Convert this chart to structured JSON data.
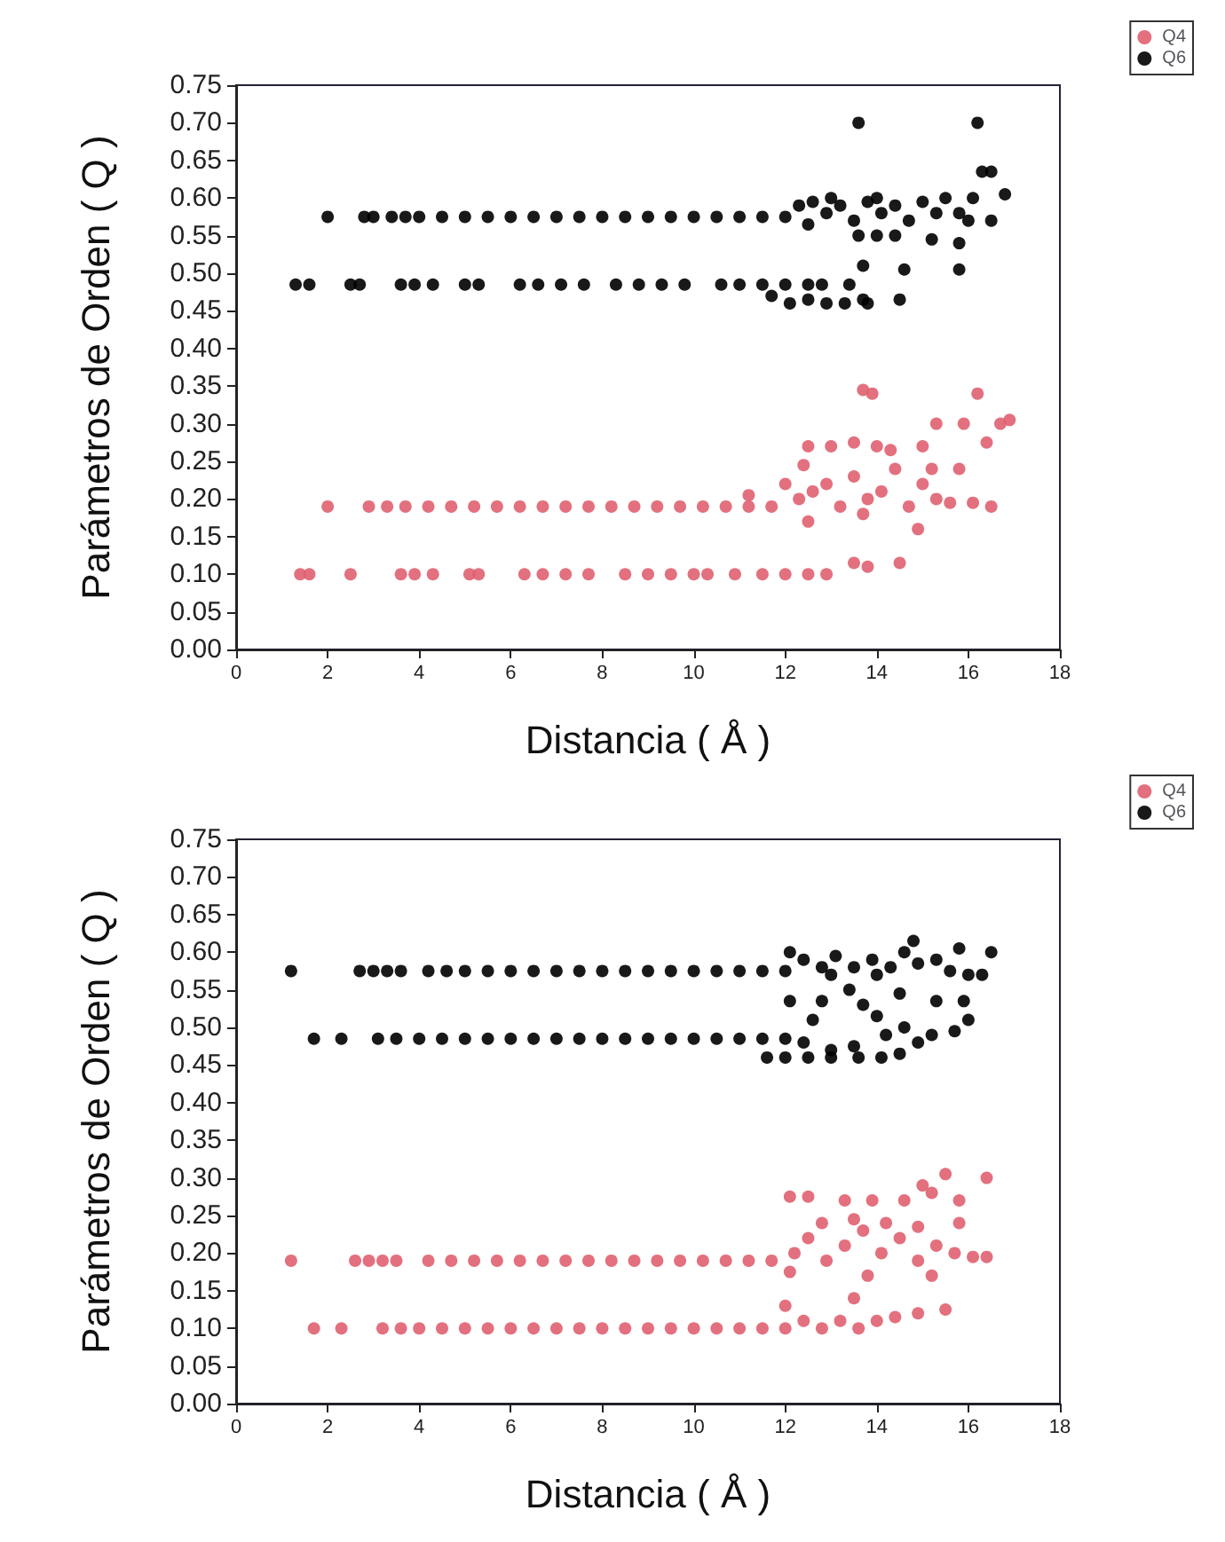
{
  "chart_data": [
    {
      "type": "scatter",
      "xlabel": "Distancia ( Å )",
      "ylabel": "Parámetros de Orden ( Q )",
      "xlim": [
        0,
        18
      ],
      "xticks": [
        0,
        2,
        4,
        6,
        8,
        10,
        12,
        14,
        16,
        18
      ],
      "ylim": [
        0,
        0.75
      ],
      "yticks": [
        {
          "value": 0,
          "label": "0.00"
        },
        {
          "value": 0.05,
          "label": "0.05"
        },
        {
          "value": 0.1,
          "label": "0.10"
        },
        {
          "value": 0.15,
          "label": "0.15"
        },
        {
          "value": 0.2,
          "label": "0.20"
        },
        {
          "value": 0.25,
          "label": "0.25"
        },
        {
          "value": 0.3,
          "label": "0.30"
        },
        {
          "value": 0.35,
          "label": "0.35"
        },
        {
          "value": 0.4,
          "label": "0.40"
        },
        {
          "value": 0.45,
          "label": "0.45"
        },
        {
          "value": 0.5,
          "label": "0.50"
        },
        {
          "value": 0.55,
          "label": "0.55"
        },
        {
          "value": 0.6,
          "label": "0.60"
        },
        {
          "value": 0.65,
          "label": "0.65"
        },
        {
          "value": 0.7,
          "label": "0.70"
        },
        {
          "value": 0.75,
          "label": "0.75"
        }
      ],
      "grid": false,
      "legend": "top right",
      "marker": "circle",
      "series": [
        {
          "name": "Q4",
          "color": "#e06070",
          "x": [
            2.0,
            2.9,
            3.3,
            3.7,
            4.2,
            4.7,
            5.2,
            5.7,
            6.2,
            6.7,
            7.2,
            7.7,
            8.2,
            8.7,
            9.2,
            9.7,
            10.2,
            10.7,
            11.2,
            11.7,
            1.4,
            1.6,
            2.5,
            3.6,
            3.9,
            4.3,
            5.1,
            5.3,
            6.3,
            6.7,
            7.2,
            7.7,
            8.5,
            9.0,
            9.5,
            10.0,
            10.3,
            10.9,
            11.5,
            12.0,
            12.5,
            12.9,
            12.3,
            12.6,
            12.9,
            13.2,
            13.5,
            13.8,
            14.1,
            14.4,
            14.7,
            15.0,
            15.3,
            15.6,
            16.1,
            16.5,
            12.5,
            13.7,
            14.9,
            12.5,
            13.0,
            13.5,
            14.0,
            14.3,
            15.0,
            15.2,
            15.8,
            12.4,
            13.7,
            13.9,
            16.2,
            15.3,
            15.9,
            16.7,
            16.9,
            16.4,
            11.2,
            12.0,
            13.5,
            14.5,
            13.8
          ],
          "values": [
            0.19,
            0.19,
            0.19,
            0.19,
            0.19,
            0.19,
            0.19,
            0.19,
            0.19,
            0.19,
            0.19,
            0.19,
            0.19,
            0.19,
            0.19,
            0.19,
            0.19,
            0.19,
            0.19,
            0.19,
            0.1,
            0.1,
            0.1,
            0.1,
            0.1,
            0.1,
            0.1,
            0.1,
            0.1,
            0.1,
            0.1,
            0.1,
            0.1,
            0.1,
            0.1,
            0.1,
            0.1,
            0.1,
            0.1,
            0.1,
            0.1,
            0.1,
            0.2,
            0.21,
            0.22,
            0.19,
            0.23,
            0.2,
            0.21,
            0.24,
            0.19,
            0.22,
            0.2,
            0.195,
            0.195,
            0.19,
            0.17,
            0.18,
            0.16,
            0.27,
            0.27,
            0.275,
            0.27,
            0.265,
            0.27,
            0.24,
            0.24,
            0.245,
            0.345,
            0.34,
            0.34,
            0.3,
            0.3,
            0.3,
            0.305,
            0.275,
            0.205,
            0.22,
            0.115,
            0.115,
            0.11
          ]
        },
        {
          "name": "Q6",
          "color": "#000000",
          "x": [
            2.0,
            2.8,
            3.0,
            3.4,
            3.7,
            4.0,
            4.5,
            5,
            5.5,
            6,
            6.5,
            7,
            7.5,
            8,
            8.5,
            9,
            9.5,
            10,
            10.5,
            11,
            11.5,
            12,
            1.3,
            1.6,
            2.5,
            2.7,
            3.6,
            3.9,
            4.3,
            5.0,
            5.3,
            6.2,
            6.6,
            7.1,
            7.6,
            8.3,
            8.8,
            9.3,
            9.8,
            10.6,
            11.0,
            11.5,
            12.0,
            12.5,
            12.3,
            12.6,
            12.9,
            13.2,
            13.5,
            13.8,
            14.1,
            14.4,
            14.7,
            15.0,
            15.3,
            12.5,
            13.0,
            14.0,
            15.5,
            15.8,
            16.0,
            16.5,
            16.8,
            16.1,
            13.6,
            16.2,
            16.3,
            16.5,
            13.6,
            14.0,
            14.4,
            15.2,
            15.8,
            13.7,
            14.6,
            15.8,
            11.7,
            12.1,
            12.5,
            12.9,
            13.3,
            13.7,
            13.8,
            14.5,
            12.8,
            13.4
          ],
          "values": [
            0.575,
            0.575,
            0.575,
            0.575,
            0.575,
            0.575,
            0.575,
            0.575,
            0.575,
            0.575,
            0.575,
            0.575,
            0.575,
            0.575,
            0.575,
            0.575,
            0.575,
            0.575,
            0.575,
            0.575,
            0.575,
            0.575,
            0.485,
            0.485,
            0.485,
            0.485,
            0.485,
            0.485,
            0.485,
            0.485,
            0.485,
            0.485,
            0.485,
            0.485,
            0.485,
            0.485,
            0.485,
            0.485,
            0.485,
            0.485,
            0.485,
            0.485,
            0.485,
            0.485,
            0.59,
            0.595,
            0.58,
            0.59,
            0.57,
            0.595,
            0.58,
            0.59,
            0.57,
            0.595,
            0.58,
            0.565,
            0.6,
            0.6,
            0.6,
            0.58,
            0.57,
            0.57,
            0.605,
            0.6,
            0.7,
            0.7,
            0.635,
            0.635,
            0.55,
            0.55,
            0.55,
            0.545,
            0.54,
            0.51,
            0.505,
            0.505,
            0.47,
            0.46,
            0.465,
            0.46,
            0.46,
            0.465,
            0.46,
            0.465,
            0.485,
            0.485
          ]
        }
      ]
    },
    {
      "type": "scatter",
      "xlabel": "Distancia ( Å )",
      "ylabel": "Parámetros de Orden ( Q )",
      "xlim": [
        0,
        18
      ],
      "xticks": [
        0,
        2,
        4,
        6,
        8,
        10,
        12,
        14,
        16,
        18
      ],
      "ylim": [
        0,
        0.75
      ],
      "yticks": [
        {
          "value": 0,
          "label": "0.00"
        },
        {
          "value": 0.05,
          "label": "0.05"
        },
        {
          "value": 0.1,
          "label": "0.10"
        },
        {
          "value": 0.15,
          "label": "0.15"
        },
        {
          "value": 0.2,
          "label": "0.20"
        },
        {
          "value": 0.25,
          "label": "0.25"
        },
        {
          "value": 0.3,
          "label": "0.30"
        },
        {
          "value": 0.35,
          "label": "0.35"
        },
        {
          "value": 0.4,
          "label": "0.40"
        },
        {
          "value": 0.45,
          "label": "0.45"
        },
        {
          "value": 0.5,
          "label": "0.50"
        },
        {
          "value": 0.55,
          "label": "0.55"
        },
        {
          "value": 0.6,
          "label": "0.60"
        },
        {
          "value": 0.65,
          "label": "0.65"
        },
        {
          "value": 0.7,
          "label": "0.70"
        },
        {
          "value": 0.75,
          "label": "0.75"
        }
      ],
      "grid": false,
      "legend": "top right",
      "marker": "circle",
      "series": [
        {
          "name": "Q4",
          "color": "#e06070",
          "x": [
            1.2,
            2.6,
            2.9,
            3.2,
            3.5,
            4.2,
            4.7,
            5.2,
            5.7,
            6.2,
            6.7,
            7.2,
            7.7,
            8.2,
            8.7,
            9.2,
            9.7,
            10.2,
            10.7,
            11.2,
            11.7,
            1.7,
            2.3,
            3.2,
            3.6,
            4.0,
            4.5,
            5,
            5.5,
            6,
            6.5,
            7,
            7.5,
            8,
            8.5,
            9,
            9.5,
            10,
            10.5,
            11,
            11.5,
            12.0,
            12.4,
            12.8,
            13.2,
            13.6,
            14.0,
            14.4,
            14.9,
            15.5,
            12.0,
            13.5,
            12.2,
            12.5,
            12.9,
            13.3,
            13.7,
            14.1,
            14.5,
            14.9,
            15.3,
            15.7,
            16.1,
            16.4,
            12.1,
            13.8,
            15.2,
            12.8,
            13.5,
            14.2,
            14.9,
            15.8,
            12.1,
            12.5,
            13.3,
            13.9,
            14.6,
            15.2,
            15.8,
            15.0,
            15.5,
            16.4
          ],
          "values": [
            0.19,
            0.19,
            0.19,
            0.19,
            0.19,
            0.19,
            0.19,
            0.19,
            0.19,
            0.19,
            0.19,
            0.19,
            0.19,
            0.19,
            0.19,
            0.19,
            0.19,
            0.19,
            0.19,
            0.19,
            0.19,
            0.1,
            0.1,
            0.1,
            0.1,
            0.1,
            0.1,
            0.1,
            0.1,
            0.1,
            0.1,
            0.1,
            0.1,
            0.1,
            0.1,
            0.1,
            0.1,
            0.1,
            0.1,
            0.1,
            0.1,
            0.1,
            0.11,
            0.1,
            0.11,
            0.1,
            0.11,
            0.115,
            0.12,
            0.125,
            0.13,
            0.14,
            0.2,
            0.22,
            0.19,
            0.21,
            0.23,
            0.2,
            0.22,
            0.19,
            0.21,
            0.2,
            0.195,
            0.195,
            0.175,
            0.17,
            0.17,
            0.24,
            0.245,
            0.24,
            0.235,
            0.24,
            0.275,
            0.275,
            0.27,
            0.27,
            0.27,
            0.28,
            0.27,
            0.29,
            0.305,
            0.3
          ]
        },
        {
          "name": "Q6",
          "color": "#000000",
          "x": [
            1.2,
            2.7,
            3.0,
            3.3,
            3.6,
            4.2,
            4.6,
            5,
            5.5,
            6,
            6.5,
            7,
            7.5,
            8,
            8.5,
            9,
            9.5,
            10,
            10.5,
            11,
            11.5,
            12,
            1.7,
            2.3,
            3.1,
            3.5,
            4,
            4.5,
            5,
            5.5,
            6,
            6.5,
            7,
            7.5,
            8,
            8.5,
            9,
            9.5,
            10,
            10.5,
            11,
            11.5,
            12,
            12.1,
            12.4,
            12.8,
            13.1,
            13.5,
            13.9,
            14.3,
            14.6,
            14.9,
            15.3,
            15.6,
            16.0,
            16.3,
            16.5,
            15.8,
            14.8,
            13.0,
            14.0,
            12.1,
            12.8,
            13.4,
            13.7,
            14.5,
            15.3,
            15.9,
            12.6,
            14.0,
            14.6,
            15.2,
            15.7,
            16.0,
            12.4,
            13.0,
            13.5,
            14.2,
            14.9,
            11.6,
            12.0,
            12.5,
            13.0,
            13.6,
            14.1,
            14.5
          ],
          "values": [
            0.575,
            0.575,
            0.575,
            0.575,
            0.575,
            0.575,
            0.575,
            0.575,
            0.575,
            0.575,
            0.575,
            0.575,
            0.575,
            0.575,
            0.575,
            0.575,
            0.575,
            0.575,
            0.575,
            0.575,
            0.575,
            0.575,
            0.485,
            0.485,
            0.485,
            0.485,
            0.485,
            0.485,
            0.485,
            0.485,
            0.485,
            0.485,
            0.485,
            0.485,
            0.485,
            0.485,
            0.485,
            0.485,
            0.485,
            0.485,
            0.485,
            0.485,
            0.485,
            0.6,
            0.59,
            0.58,
            0.595,
            0.58,
            0.59,
            0.58,
            0.6,
            0.585,
            0.59,
            0.575,
            0.57,
            0.57,
            0.6,
            0.605,
            0.615,
            0.57,
            0.57,
            0.535,
            0.535,
            0.55,
            0.53,
            0.545,
            0.535,
            0.535,
            0.51,
            0.515,
            0.5,
            0.49,
            0.495,
            0.51,
            0.48,
            0.47,
            0.475,
            0.49,
            0.48,
            0.46,
            0.46,
            0.46,
            0.46,
            0.46,
            0.46,
            0.465
          ]
        }
      ]
    }
  ]
}
